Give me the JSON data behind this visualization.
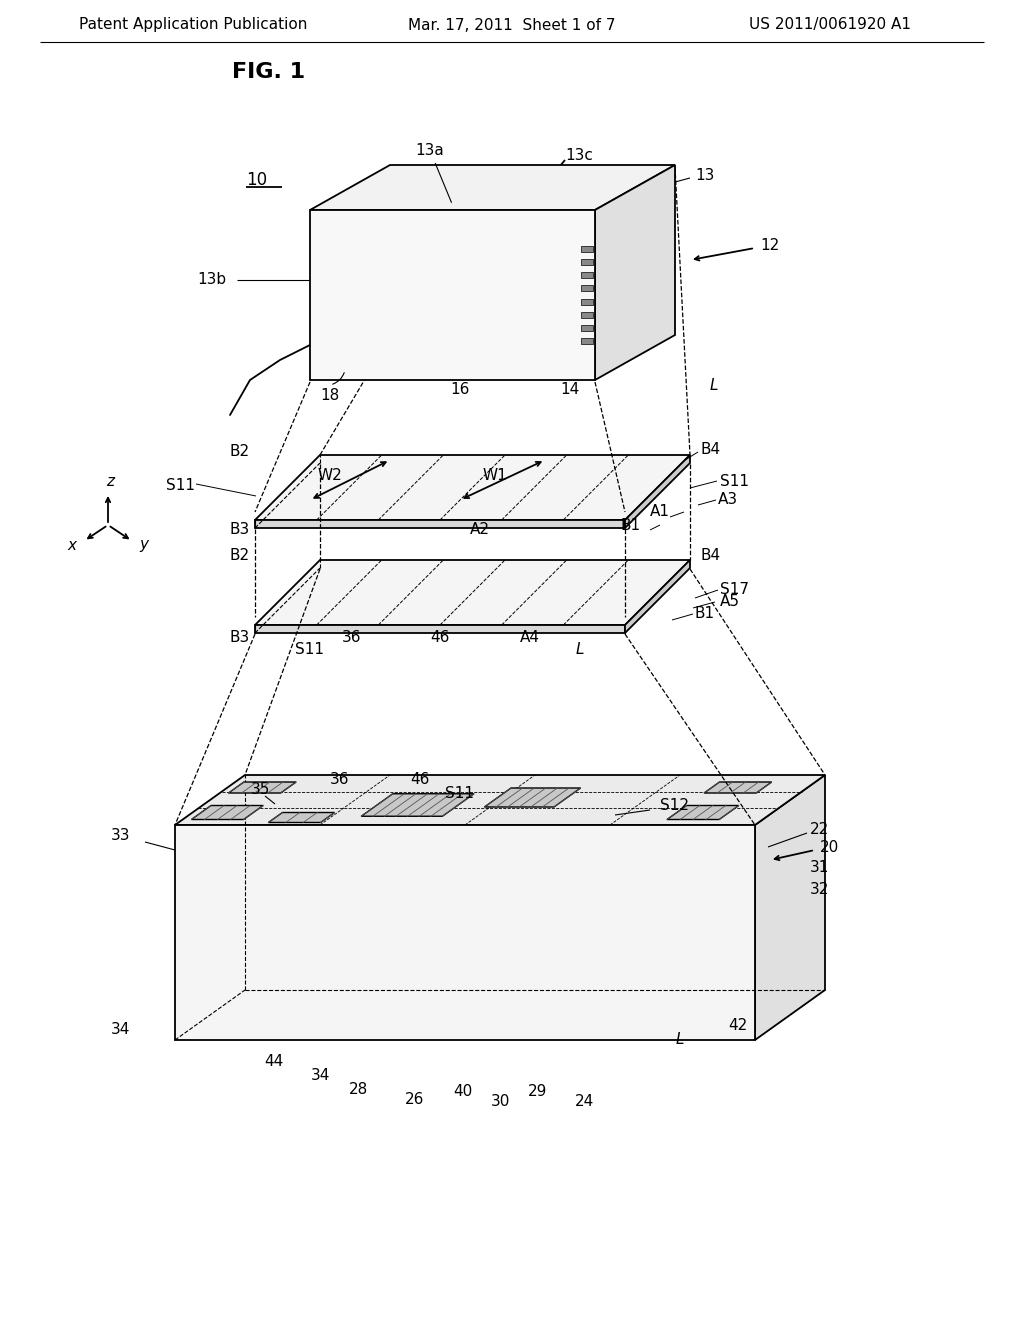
{
  "bg_color": "#ffffff",
  "line_color": "#000000",
  "header_left": "Patent Application Publication",
  "header_center": "Mar. 17, 2011  Sheet 1 of 7",
  "header_right": "US 2011/0061920 A1",
  "fig_label": "FIG. 1",
  "header_fontsize": 11,
  "fig_label_fontsize": 16,
  "annotation_fontsize": 11,
  "note_fontsize": 10
}
